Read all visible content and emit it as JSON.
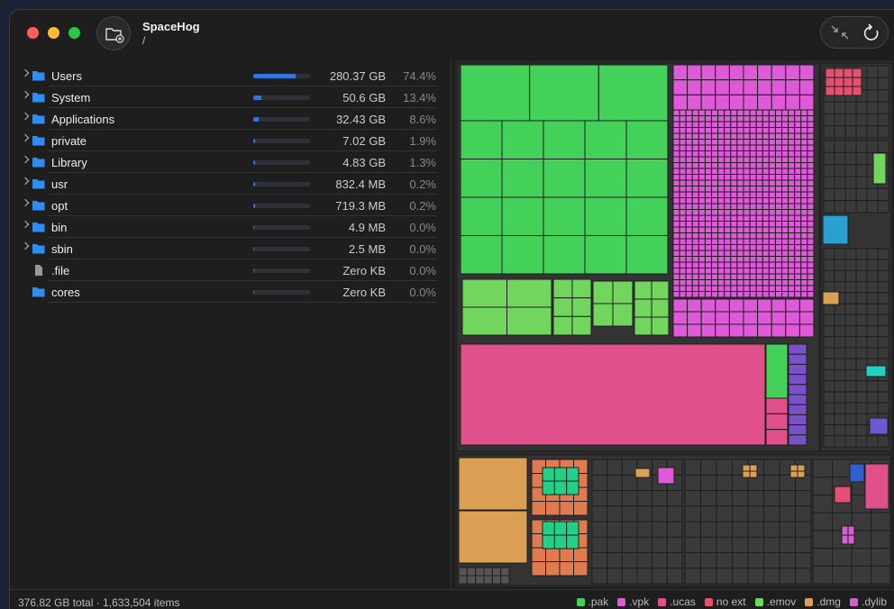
{
  "window": {
    "title": "SpaceHog",
    "path": "/"
  },
  "list": {
    "rows": [
      {
        "name": "Users",
        "size": "280.37 GB",
        "percent": {
          "value": 74.4,
          "label": "74.4%"
        },
        "kind": "folder",
        "expandable": true
      },
      {
        "name": "System",
        "size": "50.6 GB",
        "percent": {
          "value": 13.4,
          "label": "13.4%"
        },
        "kind": "folder",
        "expandable": true
      },
      {
        "name": "Applications",
        "size": "32.43 GB",
        "percent": {
          "value": 8.6,
          "label": "8.6%"
        },
        "kind": "folder",
        "expandable": true
      },
      {
        "name": "private",
        "size": "7.02 GB",
        "percent": {
          "value": 1.9,
          "label": "1.9%"
        },
        "kind": "folder",
        "expandable": true
      },
      {
        "name": "Library",
        "size": "4.83 GB",
        "percent": {
          "value": 1.3,
          "label": "1.3%"
        },
        "kind": "folder",
        "expandable": true
      },
      {
        "name": "usr",
        "size": "832.4 MB",
        "percent": {
          "value": 0.2,
          "label": "0.2%"
        },
        "kind": "folder",
        "expandable": true
      },
      {
        "name": "opt",
        "size": "719.3 MB",
        "percent": {
          "value": 0.2,
          "label": "0.2%"
        },
        "kind": "folder",
        "expandable": true
      },
      {
        "name": "bin",
        "size": "4.9 MB",
        "percent": {
          "value": 0.0,
          "label": "0.0%"
        },
        "kind": "folder",
        "expandable": true
      },
      {
        "name": "sbin",
        "size": "2.5 MB",
        "percent": {
          "value": 0.0,
          "label": "0.0%"
        },
        "kind": "folder",
        "expandable": true
      },
      {
        "name": ".file",
        "size": "Zero KB",
        "percent": {
          "value": 0.0,
          "label": "0.0%"
        },
        "kind": "file",
        "expandable": false
      },
      {
        "name": "cores",
        "size": "Zero KB",
        "percent": {
          "value": 0.0,
          "label": "0.0%"
        },
        "kind": "folder",
        "expandable": false
      }
    ]
  },
  "footer": {
    "summary": "376.82 GB total · 1,633,504 items",
    "legend": [
      {
        "name": ".pak",
        "color": "#43d15a"
      },
      {
        "name": ".vpk",
        "color": "#de5ad8"
      },
      {
        "name": ".ucas",
        "color": "#e0508a"
      },
      {
        "name": "no ext",
        "color": "#e55070"
      },
      {
        "name": ".emov",
        "color": "#72d65e"
      },
      {
        "name": ".dmg",
        "color": "#dca055"
      },
      {
        "name": ".dylib",
        "color": "#d35fd0"
      }
    ]
  }
}
